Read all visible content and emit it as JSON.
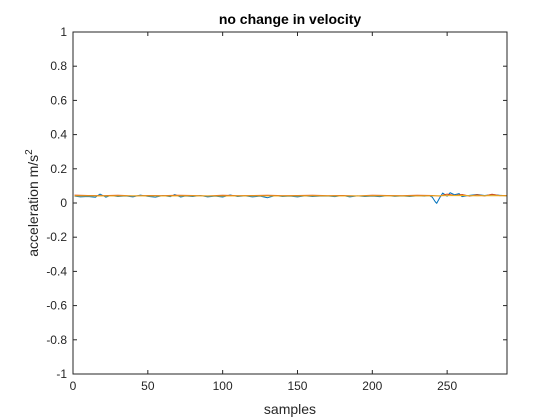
{
  "chart_data": {
    "type": "line",
    "title": "no change in velocity",
    "xlabel": "samples",
    "ylabel_base": "acceleration m/s",
    "ylabel_superscript": "2",
    "xlim": [
      0,
      290
    ],
    "ylim": [
      -1,
      1
    ],
    "xticks": [
      0,
      50,
      100,
      150,
      200,
      250
    ],
    "yticks": [
      -1,
      -0.8,
      -0.6,
      -0.4,
      -0.2,
      0,
      0.2,
      0.4,
      0.6,
      0.8,
      1
    ],
    "xtick_labels": [
      "0",
      "50",
      "100",
      "150",
      "200",
      "250"
    ],
    "ytick_labels": [
      "-1",
      "-0.8",
      "-0.6",
      "-0.4",
      "-0.2",
      "0",
      "0.2",
      "0.4",
      "0.6",
      "0.8",
      "1"
    ],
    "grid": false,
    "box": true,
    "series": [
      {
        "color": "#0072BD",
        "x": [
          1,
          5,
          10,
          15,
          18,
          22,
          25,
          30,
          35,
          40,
          45,
          50,
          55,
          60,
          65,
          68,
          72,
          75,
          80,
          85,
          90,
          95,
          100,
          105,
          110,
          115,
          120,
          125,
          130,
          135,
          140,
          145,
          150,
          155,
          160,
          165,
          170,
          175,
          180,
          185,
          190,
          195,
          200,
          205,
          210,
          215,
          220,
          225,
          230,
          235,
          238,
          240,
          242,
          243,
          245,
          247,
          250,
          252,
          255,
          258,
          260,
          265,
          270,
          275,
          280,
          285,
          290
        ],
        "values": [
          0.04,
          0.036,
          0.038,
          0.034,
          0.052,
          0.034,
          0.044,
          0.038,
          0.041,
          0.036,
          0.046,
          0.039,
          0.034,
          0.043,
          0.037,
          0.049,
          0.035,
          0.041,
          0.038,
          0.044,
          0.036,
          0.04,
          0.035,
          0.047,
          0.038,
          0.042,
          0.036,
          0.04,
          0.031,
          0.043,
          0.038,
          0.04,
          0.036,
          0.042,
          0.038,
          0.04,
          0.041,
          0.037,
          0.044,
          0.036,
          0.042,
          0.038,
          0.04,
          0.037,
          0.043,
          0.039,
          0.041,
          0.038,
          0.042,
          0.04,
          0.043,
          0.035,
          0.008,
          -0.002,
          0.03,
          0.058,
          0.04,
          0.06,
          0.048,
          0.055,
          0.037,
          0.045,
          0.05,
          0.044,
          0.049,
          0.045,
          0.042
        ]
      },
      {
        "color": "#D95319",
        "x": [
          1,
          10,
          20,
          30,
          40,
          50,
          60,
          70,
          80,
          90,
          100,
          110,
          120,
          130,
          140,
          150,
          160,
          170,
          180,
          190,
          200,
          210,
          220,
          230,
          240,
          245,
          250,
          255,
          260,
          265,
          270,
          275,
          280,
          285,
          290
        ],
        "values": [
          0.046,
          0.044,
          0.043,
          0.045,
          0.042,
          0.044,
          0.043,
          0.045,
          0.044,
          0.042,
          0.045,
          0.043,
          0.044,
          0.045,
          0.043,
          0.044,
          0.045,
          0.043,
          0.044,
          0.042,
          0.045,
          0.044,
          0.043,
          0.045,
          0.044,
          0.041,
          0.052,
          0.044,
          0.05,
          0.04,
          0.048,
          0.041,
          0.051,
          0.043,
          0.044
        ]
      },
      {
        "color": "#EDB120",
        "x": [
          1,
          20,
          40,
          60,
          80,
          100,
          120,
          140,
          160,
          180,
          200,
          220,
          240,
          250,
          260,
          270,
          280,
          290
        ],
        "values": [
          0.042,
          0.041,
          0.042,
          0.041,
          0.042,
          0.041,
          0.042,
          0.041,
          0.042,
          0.041,
          0.042,
          0.041,
          0.042,
          0.043,
          0.044,
          0.042,
          0.043,
          0.042
        ]
      }
    ]
  }
}
